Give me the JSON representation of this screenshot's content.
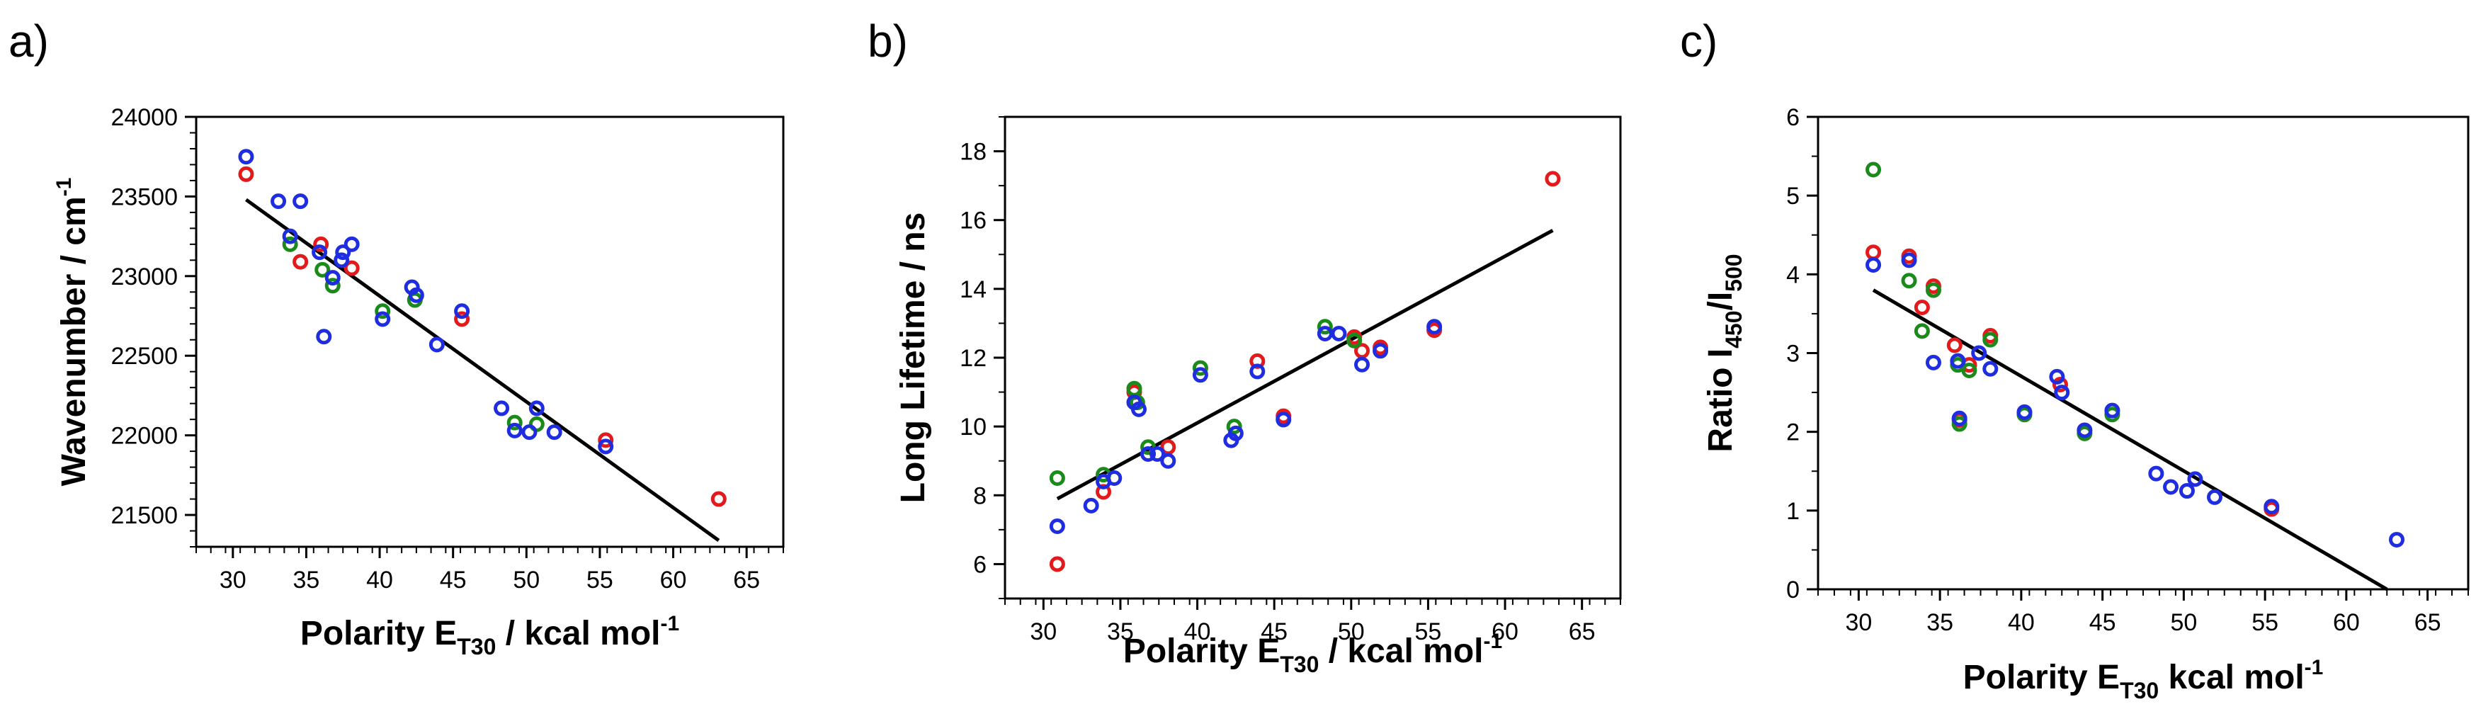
{
  "panels": [
    {
      "letter": "a)"
    },
    {
      "letter": "b)"
    },
    {
      "letter": "c)"
    }
  ],
  "colors": {
    "red": "#e31a1c",
    "green": "#1a8a1a",
    "blue": "#1f2de0",
    "fit": "#000000"
  },
  "chart_data": [
    {
      "type": "scatter",
      "panel": "a)",
      "ylabel": {
        "main": "Wavenumber / cm",
        "sup": "-1"
      },
      "xlabel": {
        "main": "Polarity E",
        "sub": "T30",
        "rest": " / kcal mol",
        "sup": "-1"
      },
      "xlim": [
        27.5,
        67.5
      ],
      "ylim": [
        21300,
        24000
      ],
      "x_ticks": [
        "30",
        "35",
        "40",
        "45",
        "50",
        "55",
        "60",
        "65"
      ],
      "y_ticks": [
        "21500",
        "22000",
        "22500",
        "23000",
        "23500",
        "24000"
      ],
      "series": [
        {
          "color": "red",
          "points": [
            [
              30.9,
              23640
            ],
            [
              34.6,
              23090
            ],
            [
              36.0,
              23200
            ],
            [
              38.1,
              23050
            ],
            [
              45.6,
              22730
            ],
            [
              55.4,
              21970
            ],
            [
              63.1,
              21600
            ]
          ]
        },
        {
          "color": "green",
          "points": [
            [
              33.9,
              23200
            ],
            [
              36.1,
              23040
            ],
            [
              36.8,
              22940
            ],
            [
              40.2,
              22780
            ],
            [
              42.4,
              22850
            ],
            [
              49.2,
              22080
            ],
            [
              50.7,
              22070
            ]
          ]
        },
        {
          "color": "blue",
          "points": [
            [
              30.9,
              23750
            ],
            [
              33.1,
              23470
            ],
            [
              33.9,
              23250
            ],
            [
              34.6,
              23470
            ],
            [
              35.9,
              23150
            ],
            [
              36.2,
              22620
            ],
            [
              36.8,
              22990
            ],
            [
              37.4,
              23100
            ],
            [
              37.5,
              23150
            ],
            [
              38.1,
              23200
            ],
            [
              40.2,
              22730
            ],
            [
              42.2,
              22930
            ],
            [
              42.5,
              22880
            ],
            [
              43.9,
              22570
            ],
            [
              45.6,
              22780
            ],
            [
              48.3,
              22170
            ],
            [
              49.2,
              22030
            ],
            [
              50.2,
              22020
            ],
            [
              50.7,
              22170
            ],
            [
              51.9,
              22020
            ],
            [
              55.4,
              21930
            ]
          ]
        }
      ],
      "fit": [
        [
          30.9,
          23480
        ],
        [
          63.1,
          21340
        ]
      ]
    },
    {
      "type": "scatter",
      "panel": "b)",
      "ylabel": {
        "main": "Long Lifetime / ns"
      },
      "xlabel": {
        "main": "Polarity E",
        "sub": "T30",
        "rest": " / kcal mol",
        "sup": "-1"
      },
      "xlim": [
        27.5,
        67.5
      ],
      "ylim": [
        5,
        19
      ],
      "x_ticks": [
        "30",
        "35",
        "40",
        "45",
        "50",
        "55",
        "60",
        "65"
      ],
      "y_ticks": [
        "6",
        "8",
        "10",
        "12",
        "14",
        "16",
        "18"
      ],
      "series": [
        {
          "color": "red",
          "points": [
            [
              30.9,
              6.0
            ],
            [
              33.9,
              8.1
            ],
            [
              35.9,
              11.0
            ],
            [
              38.1,
              9.4
            ],
            [
              43.9,
              11.9
            ],
            [
              45.6,
              10.3
            ],
            [
              50.2,
              12.6
            ],
            [
              50.7,
              12.2
            ],
            [
              51.9,
              12.3
            ],
            [
              55.4,
              12.8
            ],
            [
              63.1,
              17.2
            ]
          ]
        },
        {
          "color": "green",
          "points": [
            [
              30.9,
              8.5
            ],
            [
              33.9,
              8.6
            ],
            [
              35.9,
              11.1
            ],
            [
              36.1,
              10.7
            ],
            [
              36.8,
              9.4
            ],
            [
              40.2,
              11.7
            ],
            [
              42.4,
              10.0
            ],
            [
              48.3,
              12.9
            ],
            [
              50.2,
              12.5
            ]
          ]
        },
        {
          "color": "blue",
          "points": [
            [
              30.9,
              7.1
            ],
            [
              33.1,
              7.7
            ],
            [
              33.9,
              8.4
            ],
            [
              34.6,
              8.5
            ],
            [
              35.9,
              10.7
            ],
            [
              36.2,
              10.5
            ],
            [
              36.8,
              9.2
            ],
            [
              37.4,
              9.2
            ],
            [
              38.1,
              9.0
            ],
            [
              40.2,
              11.5
            ],
            [
              42.2,
              9.6
            ],
            [
              42.5,
              9.8
            ],
            [
              43.9,
              11.6
            ],
            [
              45.6,
              10.2
            ],
            [
              48.3,
              12.7
            ],
            [
              49.2,
              12.7
            ],
            [
              50.7,
              11.8
            ],
            [
              51.9,
              12.2
            ],
            [
              55.4,
              12.9
            ]
          ]
        }
      ],
      "fit": [
        [
          30.9,
          7.9
        ],
        [
          63.1,
          15.7
        ]
      ]
    },
    {
      "type": "scatter",
      "panel": "c)",
      "ylabel": {
        "main": "Ratio I",
        "sub1": "450",
        "mid": "/I",
        "sub2": "500"
      },
      "xlabel": {
        "main": "Polarity E",
        "sub": "T30",
        "rest": " kcal mol",
        "sup": "-1"
      },
      "xlim": [
        27.5,
        67.5
      ],
      "ylim": [
        0,
        6
      ],
      "x_ticks": [
        "30",
        "35",
        "40",
        "45",
        "50",
        "55",
        "60",
        "65"
      ],
      "y_ticks": [
        "0",
        "1",
        "2",
        "3",
        "4",
        "5",
        "6"
      ],
      "series": [
        {
          "color": "red",
          "points": [
            [
              30.9,
              4.28
            ],
            [
              33.1,
              4.23
            ],
            [
              33.9,
              3.58
            ],
            [
              34.6,
              3.85
            ],
            [
              35.9,
              3.1
            ],
            [
              36.2,
              2.15
            ],
            [
              36.8,
              2.85
            ],
            [
              38.1,
              3.22
            ],
            [
              42.4,
              2.6
            ],
            [
              55.4,
              1.02
            ]
          ]
        },
        {
          "color": "green",
          "points": [
            [
              30.9,
              5.33
            ],
            [
              33.1,
              3.92
            ],
            [
              33.9,
              3.28
            ],
            [
              34.6,
              3.8
            ],
            [
              36.1,
              2.85
            ],
            [
              36.2,
              2.1
            ],
            [
              36.8,
              2.78
            ],
            [
              38.1,
              3.17
            ],
            [
              40.2,
              2.22
            ],
            [
              43.9,
              1.98
            ],
            [
              45.6,
              2.22
            ]
          ]
        },
        {
          "color": "blue",
          "points": [
            [
              30.9,
              4.12
            ],
            [
              33.1,
              4.18
            ],
            [
              34.6,
              2.88
            ],
            [
              36.1,
              2.9
            ],
            [
              36.2,
              2.17
            ],
            [
              37.4,
              3.0
            ],
            [
              38.1,
              2.8
            ],
            [
              40.2,
              2.25
            ],
            [
              42.2,
              2.7
            ],
            [
              42.5,
              2.5
            ],
            [
              43.9,
              2.02
            ],
            [
              45.6,
              2.27
            ],
            [
              48.3,
              1.47
            ],
            [
              49.2,
              1.3
            ],
            [
              50.2,
              1.25
            ],
            [
              50.7,
              1.4
            ],
            [
              51.9,
              1.17
            ],
            [
              55.4,
              1.05
            ],
            [
              63.1,
              0.63
            ]
          ]
        }
      ],
      "fit": [
        [
          30.9,
          3.8
        ],
        [
          62.5,
          0.0
        ]
      ]
    }
  ]
}
